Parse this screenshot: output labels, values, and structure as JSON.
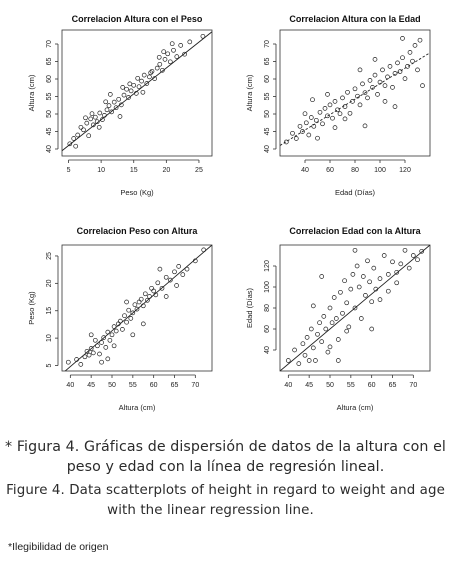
{
  "chart_data": [
    {
      "type": "scatter",
      "title": "Correlacion Altura con el Peso",
      "xlabel": "Peso (Kg)",
      "ylabel": "Altura (cm)",
      "xlim": [
        4,
        27
      ],
      "ylim": [
        38,
        74
      ],
      "xticks": [
        5,
        10,
        15,
        20,
        25
      ],
      "yticks": [
        40,
        45,
        50,
        55,
        60,
        65,
        70
      ],
      "regression": {
        "x": [
          4,
          27
        ],
        "y": [
          39.5,
          73.5
        ],
        "style": "solid"
      },
      "points": [
        [
          5.2,
          41.5
        ],
        [
          5.8,
          43
        ],
        [
          6.4,
          44
        ],
        [
          6.9,
          46.2
        ],
        [
          7.3,
          45.5
        ],
        [
          7.8,
          47.4
        ],
        [
          8.1,
          43.8
        ],
        [
          8.4,
          48.6
        ],
        [
          8.8,
          46.9
        ],
        [
          9.1,
          49.1
        ],
        [
          9.4,
          47.8
        ],
        [
          9.8,
          50.3
        ],
        [
          10.2,
          48.4
        ],
        [
          10.5,
          49.6
        ],
        [
          10.9,
          51.2
        ],
        [
          11.2,
          52.4
        ],
        [
          11.6,
          50.6
        ],
        [
          12.0,
          53.4
        ],
        [
          12.3,
          51.8
        ],
        [
          12.7,
          54.2
        ],
        [
          13.1,
          52.6
        ],
        [
          13.5,
          55.4
        ],
        [
          13.9,
          57.1
        ],
        [
          14.2,
          54.7
        ],
        [
          14.6,
          56.6
        ],
        [
          15.0,
          58.2
        ],
        [
          15.4,
          55.9
        ],
        [
          15.8,
          57.8
        ],
        [
          16.2,
          59.4
        ],
        [
          16.6,
          61.1
        ],
        [
          17.0,
          58.7
        ],
        [
          17.4,
          60.6
        ],
        [
          17.8,
          62.2
        ],
        [
          18.2,
          60.1
        ],
        [
          18.6,
          63.1
        ],
        [
          19.0,
          64.2
        ],
        [
          19.4,
          62.5
        ],
        [
          19.8,
          65.6
        ],
        [
          20.2,
          67.2
        ],
        [
          20.6,
          64.9
        ],
        [
          21.1,
          68.2
        ],
        [
          21.6,
          66.4
        ],
        [
          22.2,
          69.6
        ],
        [
          22.8,
          67.1
        ],
        [
          23.6,
          70.6
        ],
        [
          25.6,
          72.2
        ],
        [
          6.1,
          40.8
        ],
        [
          7.6,
          48.9
        ],
        [
          9.7,
          46.2
        ],
        [
          11.4,
          55.6
        ],
        [
          12.9,
          49.3
        ],
        [
          14.4,
          58.6
        ],
        [
          16.4,
          56.2
        ],
        [
          18.9,
          66.2
        ],
        [
          20.9,
          70.1
        ],
        [
          13.3,
          57.6
        ],
        [
          10.7,
          53.5
        ],
        [
          8.6,
          50.1
        ],
        [
          17.6,
          61.8
        ],
        [
          15.6,
          60.2
        ],
        [
          19.6,
          67.8
        ]
      ]
    },
    {
      "type": "scatter",
      "title": "Correlacion Altura con la Edad",
      "xlabel": "Edad (Días)",
      "ylabel": "Altura (cm)",
      "xlim": [
        20,
        140
      ],
      "ylim": [
        38,
        74
      ],
      "xticks": [
        40,
        60,
        80,
        100,
        120
      ],
      "yticks": [
        40,
        45,
        50,
        55,
        60,
        65,
        70
      ],
      "regression": {
        "x": [
          20,
          140
        ],
        "y": [
          41,
          67.5
        ],
        "style": "dashed"
      },
      "points": [
        [
          25,
          42
        ],
        [
          30,
          44.5
        ],
        [
          33,
          43
        ],
        [
          36,
          46.5
        ],
        [
          38,
          45
        ],
        [
          41,
          47.5
        ],
        [
          43,
          44
        ],
        [
          45,
          49
        ],
        [
          47,
          46.5
        ],
        [
          49,
          48.2
        ],
        [
          52,
          50.5
        ],
        [
          54,
          47.2
        ],
        [
          56,
          51.6
        ],
        [
          58,
          49.5
        ],
        [
          60,
          52.6
        ],
        [
          62,
          48.8
        ],
        [
          64,
          53.6
        ],
        [
          66,
          51.2
        ],
        [
          68,
          50.1
        ],
        [
          70,
          54.6
        ],
        [
          72,
          52.1
        ],
        [
          74,
          56.2
        ],
        [
          76,
          50.2
        ],
        [
          78,
          53.6
        ],
        [
          80,
          57.2
        ],
        [
          82,
          55.1
        ],
        [
          84,
          52.6
        ],
        [
          86,
          58.6
        ],
        [
          88,
          56.1
        ],
        [
          90,
          54.6
        ],
        [
          92,
          59.6
        ],
        [
          94,
          57.6
        ],
        [
          96,
          61.1
        ],
        [
          98,
          55.6
        ],
        [
          100,
          59.1
        ],
        [
          102,
          62.6
        ],
        [
          104,
          58.1
        ],
        [
          106,
          60.6
        ],
        [
          108,
          63.6
        ],
        [
          110,
          57.6
        ],
        [
          112,
          61.6
        ],
        [
          114,
          64.6
        ],
        [
          116,
          62.1
        ],
        [
          118,
          66.1
        ],
        [
          120,
          60.1
        ],
        [
          122,
          63.6
        ],
        [
          124,
          67.6
        ],
        [
          126,
          65.1
        ],
        [
          128,
          69.6
        ],
        [
          130,
          62.6
        ],
        [
          132,
          71.1
        ],
        [
          134,
          58.1
        ],
        [
          46,
          54.1
        ],
        [
          50,
          43.1
        ],
        [
          64,
          46.1
        ],
        [
          72,
          48.6
        ],
        [
          84,
          62.6
        ],
        [
          96,
          65.6
        ],
        [
          104,
          53.6
        ],
        [
          118,
          71.6
        ],
        [
          88,
          46.6
        ],
        [
          112,
          52.1
        ],
        [
          58,
          55.6
        ],
        [
          40,
          50.1
        ]
      ]
    },
    {
      "type": "scatter",
      "title": "Correlacion Peso con Altura",
      "xlabel": "Altura (cm)",
      "ylabel": "Peso (Kg)",
      "xlim": [
        38,
        74
      ],
      "ylim": [
        4,
        27
      ],
      "xticks": [
        40,
        45,
        50,
        55,
        60,
        65,
        70
      ],
      "yticks": [
        5,
        10,
        15,
        20,
        25
      ],
      "regression": {
        "x": [
          38,
          74
        ],
        "y": [
          3.5,
          27
        ],
        "style": "solid"
      },
      "points": [
        [
          39.5,
          5.6
        ],
        [
          41.5,
          6.1
        ],
        [
          42.5,
          5.2
        ],
        [
          43.5,
          6.6
        ],
        [
          44,
          7.6
        ],
        [
          44.5,
          6.9
        ],
        [
          45,
          8.1
        ],
        [
          45.5,
          7.3
        ],
        [
          46,
          9.6
        ],
        [
          46.5,
          8.6
        ],
        [
          47,
          7.1
        ],
        [
          47.5,
          9.2
        ],
        [
          48,
          10.1
        ],
        [
          48.5,
          8.3
        ],
        [
          49,
          11.1
        ],
        [
          49.5,
          9.6
        ],
        [
          50,
          10.6
        ],
        [
          50.5,
          12.1
        ],
        [
          51,
          11.3
        ],
        [
          51.5,
          12.6
        ],
        [
          52,
          13.1
        ],
        [
          52.5,
          11.6
        ],
        [
          53,
          14.1
        ],
        [
          53.5,
          12.9
        ],
        [
          54,
          15.1
        ],
        [
          54.5,
          13.6
        ],
        [
          55,
          14.6
        ],
        [
          55.5,
          16.1
        ],
        [
          56,
          15.3
        ],
        [
          56.5,
          16.6
        ],
        [
          57,
          17.1
        ],
        [
          57.5,
          15.9
        ],
        [
          58,
          18.1
        ],
        [
          58.5,
          16.9
        ],
        [
          59,
          17.6
        ],
        [
          59.5,
          19.1
        ],
        [
          60,
          18.6
        ],
        [
          60.5,
          17.9
        ],
        [
          61,
          20.1
        ],
        [
          62,
          19.1
        ],
        [
          63,
          21.1
        ],
        [
          64,
          20.6
        ],
        [
          65,
          22.1
        ],
        [
          65.5,
          19.6
        ],
        [
          66,
          23.1
        ],
        [
          67,
          21.6
        ],
        [
          68,
          22.6
        ],
        [
          70,
          24.1
        ],
        [
          72,
          26.1
        ],
        [
          47.5,
          5.6
        ],
        [
          50.5,
          8.6
        ],
        [
          53.5,
          16.6
        ],
        [
          57.5,
          12.6
        ],
        [
          61.5,
          22.6
        ],
        [
          49,
          6.2
        ],
        [
          55,
          10.6
        ],
        [
          63,
          17.6
        ],
        [
          45,
          10.6
        ]
      ]
    },
    {
      "type": "scatter",
      "title": "Correlacion Edad con la Altura",
      "xlabel": "Altura (cm)",
      "ylabel": "Edad (Días)",
      "xlim": [
        38,
        74
      ],
      "ylim": [
        20,
        140
      ],
      "xticks": [
        40,
        45,
        50,
        55,
        60,
        65,
        70
      ],
      "yticks": [
        40,
        60,
        80,
        100,
        120
      ],
      "regression": {
        "x": [
          38,
          74
        ],
        "y": [
          20,
          140
        ],
        "style": "solid"
      },
      "points": [
        [
          40,
          30
        ],
        [
          41.5,
          40
        ],
        [
          42.5,
          27
        ],
        [
          43.5,
          46
        ],
        [
          44,
          35
        ],
        [
          44.5,
          52
        ],
        [
          45,
          30
        ],
        [
          45.5,
          60
        ],
        [
          46,
          42
        ],
        [
          46.5,
          30
        ],
        [
          47,
          55
        ],
        [
          47.5,
          66
        ],
        [
          48,
          48
        ],
        [
          48.5,
          72
        ],
        [
          49,
          60
        ],
        [
          49.5,
          38
        ],
        [
          50,
          80
        ],
        [
          50.5,
          66
        ],
        [
          51,
          90
        ],
        [
          51.5,
          70
        ],
        [
          52,
          50
        ],
        [
          52.5,
          95
        ],
        [
          53,
          75
        ],
        [
          53.5,
          106
        ],
        [
          54,
          85
        ],
        [
          54.5,
          62
        ],
        [
          55,
          98
        ],
        [
          55.5,
          112
        ],
        [
          56,
          80
        ],
        [
          56.5,
          120
        ],
        [
          57,
          100
        ],
        [
          57.5,
          70
        ],
        [
          58,
          110
        ],
        [
          58.5,
          92
        ],
        [
          59,
          125
        ],
        [
          59.5,
          105
        ],
        [
          60,
          86
        ],
        [
          60.5,
          118
        ],
        [
          61,
          98
        ],
        [
          62,
          108
        ],
        [
          63,
          130
        ],
        [
          64,
          112
        ],
        [
          65,
          124
        ],
        [
          66,
          104
        ],
        [
          67,
          122
        ],
        [
          68,
          135
        ],
        [
          69,
          118
        ],
        [
          70,
          130
        ],
        [
          71,
          126
        ],
        [
          72,
          134
        ],
        [
          50,
          43
        ],
        [
          52,
          30
        ],
        [
          56,
          135
        ],
        [
          60,
          60
        ],
        [
          64,
          96
        ],
        [
          48,
          110
        ],
        [
          54,
          58
        ],
        [
          62,
          88
        ],
        [
          66,
          114
        ],
        [
          46,
          82
        ]
      ]
    }
  ],
  "caption": {
    "es_line1": "* Figura 4. Gráficas de dispersión de datos de la altura con el",
    "es_line2": "peso y edad con la línea de regresión lineal.",
    "en_line1": "Figure 4. Data scatterplots of height in regard to weight and age",
    "en_line2": "with the linear regression line."
  },
  "footnote": "*Ilegibilidad de origen"
}
